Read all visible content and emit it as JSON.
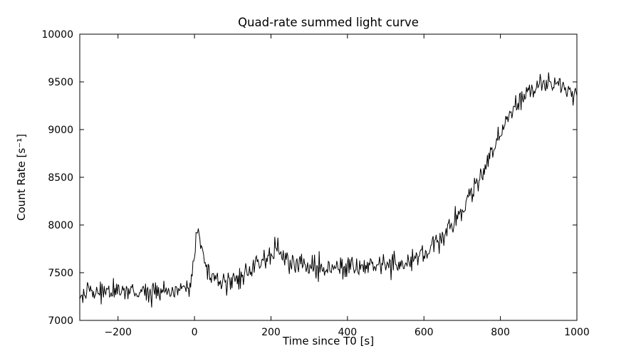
{
  "page": {
    "background": "#ffffff"
  },
  "chart_data": {
    "type": "line",
    "title": "Quad-rate summed light curve",
    "xlabel": "Time since T0 [s]",
    "ylabel": "Count Rate [s⁻¹]",
    "xlim": [
      -300,
      1000
    ],
    "ylim": [
      7000,
      10000
    ],
    "x_ticks": [
      -200,
      0,
      200,
      400,
      600,
      800,
      1000
    ],
    "y_ticks": [
      7000,
      7500,
      8000,
      8500,
      9000,
      9500,
      10000
    ],
    "line_color": "#000000",
    "axis_color": "#000000",
    "grid": false,
    "legend": null,
    "bin_seconds": 2,
    "noise_sigma": 58,
    "noise_seed": 42,
    "keypoints": [
      [
        -300,
        7300
      ],
      [
        -260,
        7290
      ],
      [
        -220,
        7300
      ],
      [
        -180,
        7300
      ],
      [
        -140,
        7310
      ],
      [
        -100,
        7300
      ],
      [
        -60,
        7320
      ],
      [
        -30,
        7330
      ],
      [
        -10,
        7360
      ],
      [
        0,
        7750
      ],
      [
        8,
        7950
      ],
      [
        15,
        7800
      ],
      [
        25,
        7620
      ],
      [
        40,
        7500
      ],
      [
        60,
        7430
      ],
      [
        80,
        7410
      ],
      [
        100,
        7430
      ],
      [
        120,
        7460
      ],
      [
        140,
        7520
      ],
      [
        160,
        7590
      ],
      [
        180,
        7650
      ],
      [
        195,
        7690
      ],
      [
        210,
        7710
      ],
      [
        225,
        7670
      ],
      [
        240,
        7620
      ],
      [
        260,
        7590
      ],
      [
        280,
        7570
      ],
      [
        300,
        7560
      ],
      [
        330,
        7570
      ],
      [
        360,
        7560
      ],
      [
        390,
        7570
      ],
      [
        420,
        7560
      ],
      [
        450,
        7580
      ],
      [
        480,
        7570
      ],
      [
        510,
        7590
      ],
      [
        540,
        7600
      ],
      [
        560,
        7620
      ],
      [
        580,
        7660
      ],
      [
        600,
        7710
      ],
      [
        620,
        7770
      ],
      [
        640,
        7850
      ],
      [
        660,
        7940
      ],
      [
        680,
        8040
      ],
      [
        700,
        8160
      ],
      [
        720,
        8300
      ],
      [
        740,
        8440
      ],
      [
        760,
        8590
      ],
      [
        780,
        8760
      ],
      [
        800,
        8950
      ],
      [
        820,
        9110
      ],
      [
        840,
        9250
      ],
      [
        860,
        9360
      ],
      [
        880,
        9430
      ],
      [
        900,
        9480
      ],
      [
        915,
        9500
      ],
      [
        930,
        9470
      ],
      [
        945,
        9490
      ],
      [
        960,
        9450
      ],
      [
        975,
        9430
      ],
      [
        990,
        9400
      ],
      [
        1000,
        9350
      ]
    ]
  }
}
